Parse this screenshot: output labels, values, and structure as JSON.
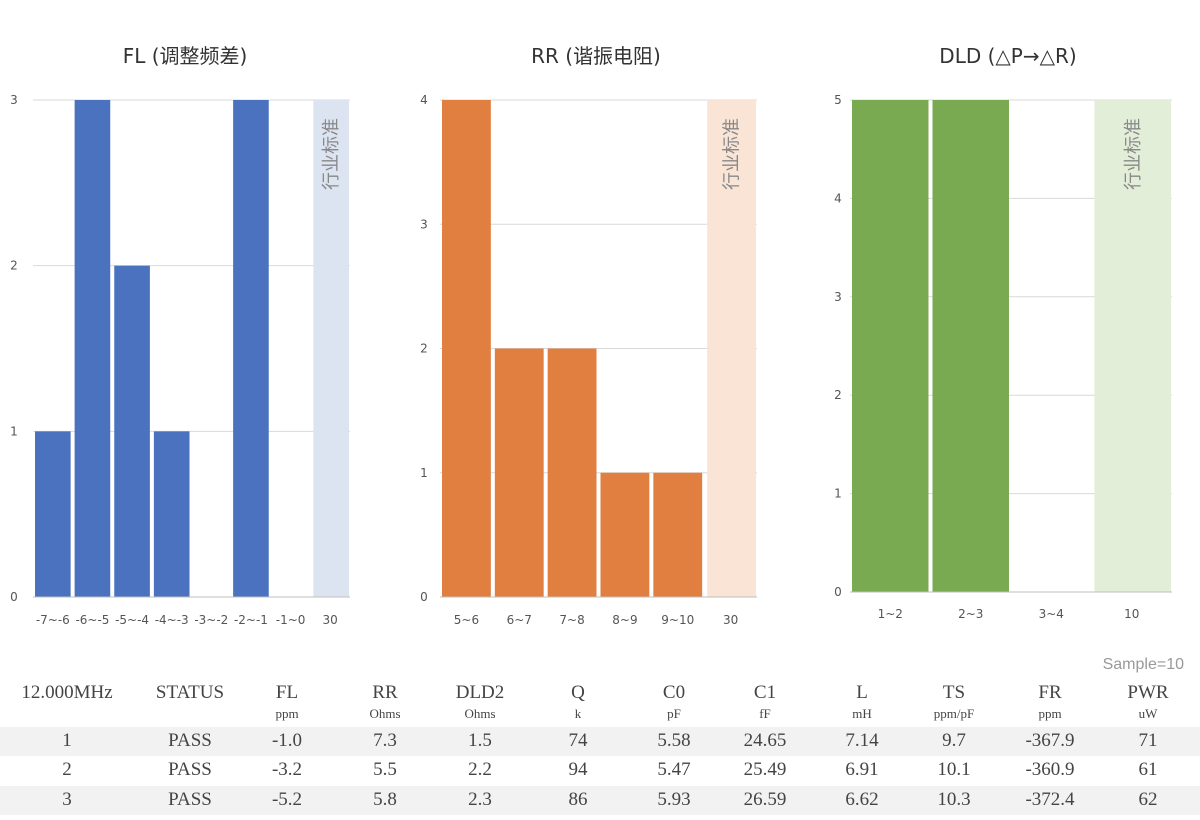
{
  "chart_data": [
    {
      "type": "bar",
      "title": "FL (调整频差)",
      "categories": [
        "-7~-6",
        "-6~-5",
        "-5~-4",
        "-4~-3",
        "-3~-2",
        "-2~-1",
        "-1~0",
        "30"
      ],
      "values": [
        1,
        3,
        2,
        1,
        0,
        3,
        0,
        null
      ],
      "ylim": [
        0,
        3
      ],
      "yticks": [
        0,
        1,
        2,
        3
      ],
      "color": "#4a72be",
      "band": {
        "category": "30",
        "label": "行业标准",
        "color": "#dce3f1"
      },
      "grid": true
    },
    {
      "type": "bar",
      "title": "RR (谐振电阻)",
      "categories": [
        "5~6",
        "6~7",
        "7~8",
        "8~9",
        "9~10",
        "30"
      ],
      "values": [
        4,
        2,
        2,
        1,
        1,
        null
      ],
      "ylim": [
        0,
        4
      ],
      "yticks": [
        0,
        1,
        2,
        3,
        4
      ],
      "color": "#e07f3f",
      "band": {
        "category": "30",
        "label": "行业标准",
        "color": "#f9e4d6"
      },
      "grid": true
    },
    {
      "type": "bar",
      "title": "DLD (△P→△R)",
      "categories": [
        "1~2",
        "2~3",
        "3~4",
        "10"
      ],
      "values": [
        5,
        5,
        0,
        null
      ],
      "ylim": [
        0,
        5
      ],
      "yticks": [
        0,
        1,
        2,
        3,
        4,
        5
      ],
      "color": "#79a950",
      "band": {
        "category": "10",
        "label": "行业标准",
        "color": "#e3eed9"
      },
      "grid": true
    }
  ],
  "table": {
    "sample": "Sample=10",
    "headers": [
      "12.000MHz",
      "STATUS",
      "FL",
      "RR",
      "DLD2",
      "Q",
      "C0",
      "C1",
      "L",
      "TS",
      "FR",
      "PWR"
    ],
    "units": [
      "",
      "",
      "ppm",
      "Ohms",
      "Ohms",
      "k",
      "pF",
      "fF",
      "mH",
      "ppm/pF",
      "ppm",
      "uW"
    ],
    "rows": [
      [
        "1",
        "PASS",
        "-1.0",
        "7.3",
        "1.5",
        "74",
        "5.58",
        "24.65",
        "7.14",
        "9.7",
        "-367.9",
        "71"
      ],
      [
        "2",
        "PASS",
        "-3.2",
        "5.5",
        "2.2",
        "94",
        "5.47",
        "25.49",
        "6.91",
        "10.1",
        "-360.9",
        "61"
      ],
      [
        "3",
        "PASS",
        "-5.2",
        "5.8",
        "2.3",
        "86",
        "5.93",
        "26.59",
        "6.62",
        "10.3",
        "-372.4",
        "62"
      ]
    ]
  }
}
